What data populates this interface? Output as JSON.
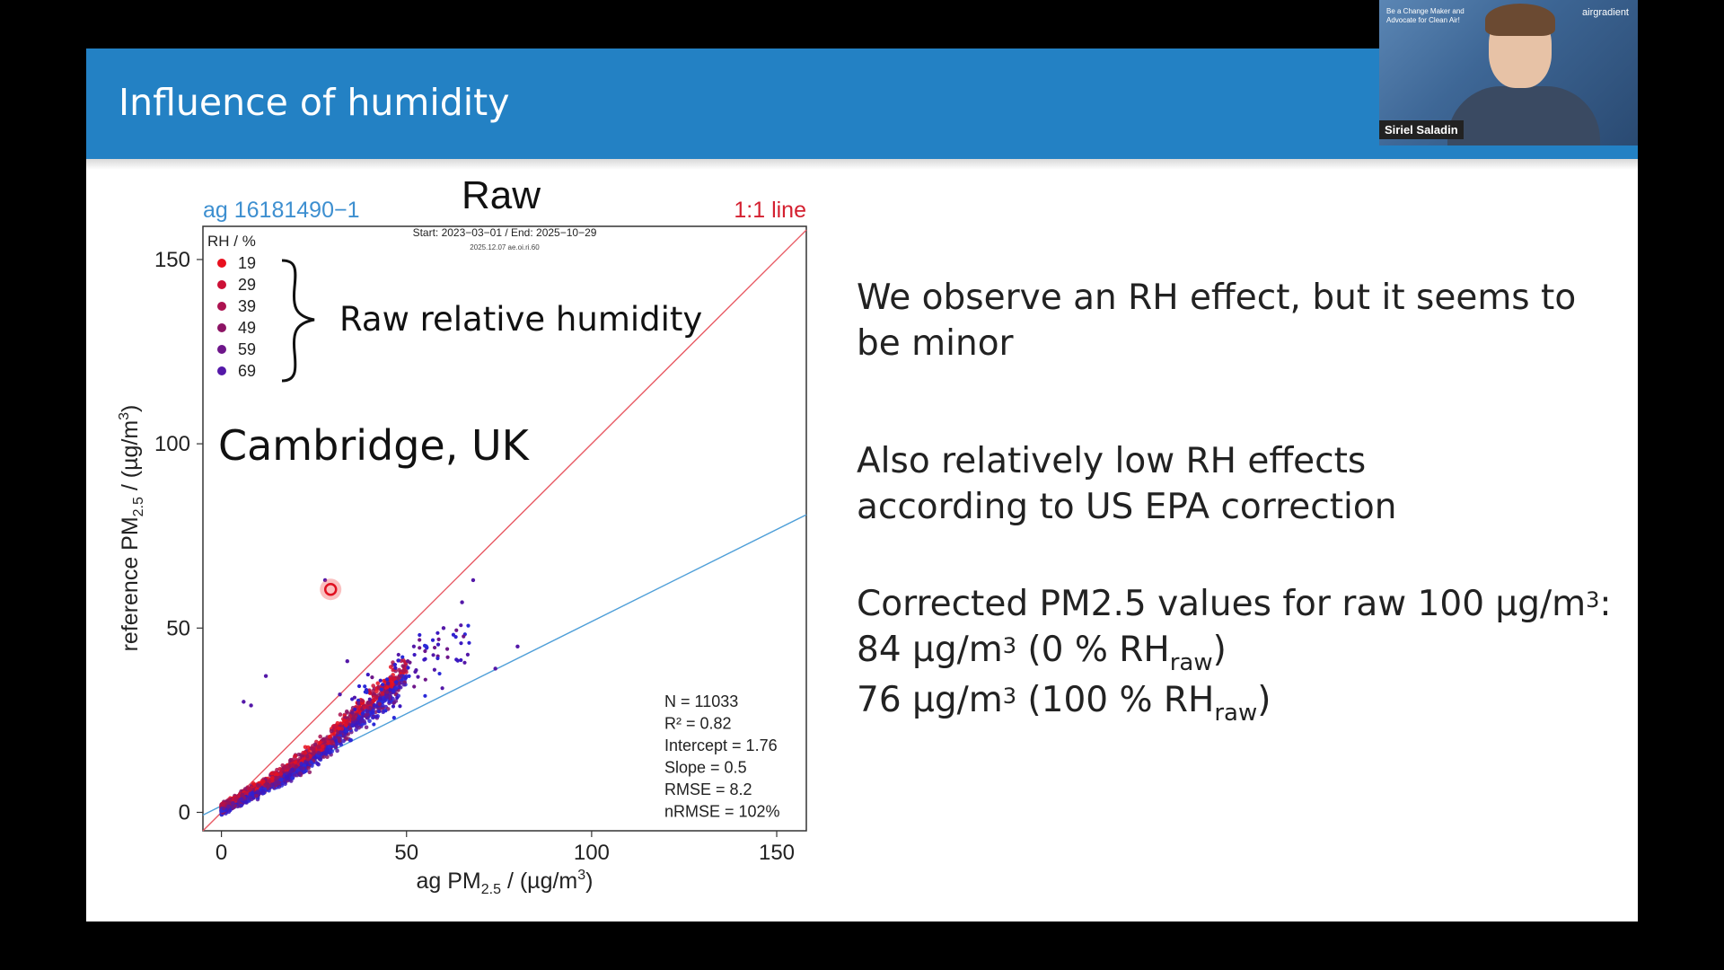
{
  "slide": {
    "title": "Influence of humidity"
  },
  "chart_data": {
    "type": "scatter",
    "heading": "Raw",
    "sensor_label": "ag 16181490−1",
    "one_to_one_label": "1:1 line",
    "date_range": "Start: 2023−03−01 / End: 2025−10−29",
    "subtitle_small": "2025.12.07 ae.oi.ri.60",
    "xlabel_main": "ag PM",
    "xlabel_sub": "2.5",
    "xlabel_units": " / (µg/m",
    "xlabel_sup": "3",
    "xlabel_close": ")",
    "ylabel_main": "reference PM",
    "ylabel_sub": "2.5",
    "ylabel_units": " / (µg/m",
    "ylabel_sup": "3",
    "ylabel_close": ")",
    "xlim": [
      -5,
      158
    ],
    "ylim": [
      -5,
      159
    ],
    "xticks": [
      0,
      50,
      100,
      150
    ],
    "yticks": [
      0,
      50,
      100,
      150
    ],
    "legend_title": "RH / %",
    "legend": [
      {
        "label": "19",
        "color": "#e8101e"
      },
      {
        "label": "29",
        "color": "#cc1036"
      },
      {
        "label": "39",
        "color": "#ac1250"
      },
      {
        "label": "49",
        "color": "#8c1464"
      },
      {
        "label": "59",
        "color": "#6e168a"
      },
      {
        "label": "69",
        "color": "#5418a8"
      }
    ],
    "annotation_brace_text": "Raw relative humidity",
    "location_label": "Cambridge, UK",
    "one_to_one_line": {
      "color": "#e85a64",
      "from": [
        -5,
        -5
      ],
      "to": [
        158,
        158
      ]
    },
    "fit_line": {
      "color": "#4f9fd8",
      "intercept": 1.76,
      "slope": 0.5
    },
    "stats": [
      "N =  11033",
      "R² =  0.82",
      "Intercept =  1.76",
      "Slope =  0.5",
      "RMSE =  8.2",
      "nRMSE =  102%"
    ],
    "highlight_point": {
      "x": 29.5,
      "y": 60.5
    }
  },
  "right_panel": {
    "p1_line1": "We observe an RH effect, but it seems to",
    "p1_line2": "be minor",
    "p2_line1": "Also relatively low RH effects",
    "p2_line2": "according to US EPA correction",
    "p3_line1": "Corrected PM2.5 values for raw 100 µg/m",
    "p3_line1_sup": "3",
    "p3_line1_end": ":",
    "p3_line2_a": "84 µg/m",
    "p3_line2_sup": "3",
    "p3_line2_b": " (0 % RH",
    "p3_line2_sub": "raw",
    "p3_line2_c": ")",
    "p3_line3_a": "76 µg/m",
    "p3_line3_sup": "3",
    "p3_line3_b": " (100 % RH",
    "p3_line3_sub": "raw",
    "p3_line3_c": ")"
  },
  "video": {
    "tagline": "Be a Change Maker and Advocate for Clean Air!",
    "logo": "airgradient",
    "speaker_name": "Siriel Saladin"
  }
}
